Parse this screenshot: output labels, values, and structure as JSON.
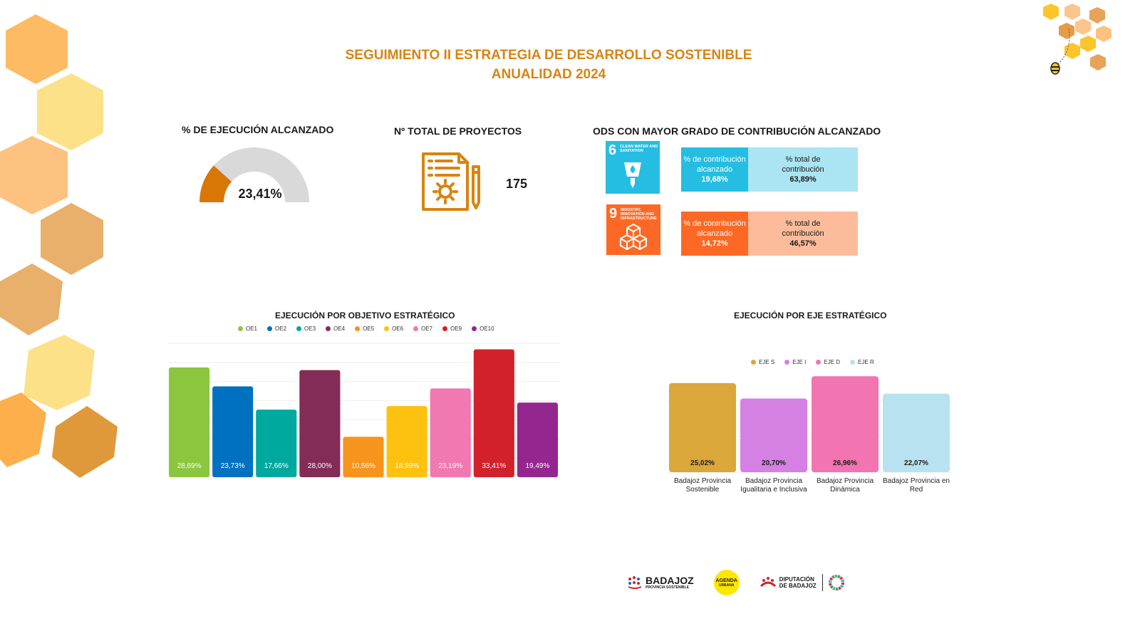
{
  "header": {
    "title_line1": "SEGUIMIENTO  II ESTRATEGIA DE DESARROLLO SOSTENIBLE",
    "title_line2": "ANUALIDAD 2024"
  },
  "execution": {
    "title": "% DE EJECUCIÓN ALCANZADO",
    "value_label": "23,41%",
    "value": 23.41,
    "fill_color": "#d97706",
    "track_color": "#d9d9d9"
  },
  "projects": {
    "title": "Nº TOTAL DE PROYECTOS",
    "total": "175",
    "icon": "document-gear-pencil-icon"
  },
  "ods": {
    "title": "ODS CON MAYOR GRADO DE CONTRIBUCIÓN ALCANZADO",
    "items": [
      {
        "number": "6",
        "name": "CLEAN WATER AND SANITATION",
        "tile_color": "#26bde2",
        "left_color": "#26bde2",
        "right_color": "#abe4f2",
        "left_label": "% de contribución alcanzado",
        "left_value": "19,68%",
        "right_label": "% total de contribución",
        "right_value": "63,89%"
      },
      {
        "number": "9",
        "name": "INDUSTRY, INNOVATION AND INFRASTRUCTURE",
        "tile_color": "#fd6925",
        "left_color": "#fd6925",
        "right_color": "#fcbc9c",
        "left_label": "% de contribución alcanzado",
        "left_value": "14,72%",
        "right_label": "% total de contribución",
        "right_value": "46,57%"
      }
    ]
  },
  "chart_data": [
    {
      "type": "bar",
      "title": "EJECUCIÓN POR OBJETIVO ESTRATÉGICO",
      "legend_position": "top",
      "grid": true,
      "categories": [
        "OE1",
        "OE2",
        "OE3",
        "OE4",
        "OE5",
        "OE6",
        "OE7",
        "OE9",
        "OE10"
      ],
      "values": [
        28.69,
        23.73,
        17.66,
        28.0,
        10.56,
        18.59,
        23.19,
        33.41,
        19.49
      ],
      "data_labels": [
        "28,69%",
        "23,73%",
        "17,66%",
        "28,00%",
        "10,56%",
        "18,59%",
        "23,19%",
        "33,41%",
        "19,49%"
      ],
      "colors": [
        "#8cc63f",
        "#0070c0",
        "#00a99d",
        "#832c57",
        "#f7941d",
        "#fdc110",
        "#f178b0",
        "#d2212b",
        "#93278f"
      ],
      "ylim": [
        0,
        35
      ]
    },
    {
      "type": "bar",
      "title": "EJECUCIÓN POR EJE ESTRATÉGICO",
      "legend_position": "top",
      "grid": true,
      "legend": [
        "EJE S",
        "EJE I",
        "EJE D",
        "EJE R"
      ],
      "categories": [
        "Badajoz Provincia Sostenible",
        "Badajoz Provincia Igualitaria e Inclusiva",
        "Badajoz Provincia Dinámica",
        "Badajoz Provincia en Red"
      ],
      "values": [
        25.02,
        20.7,
        26.96,
        22.07
      ],
      "data_labels": [
        "25,02%",
        "20,70%",
        "26,96%",
        "22,07%"
      ],
      "colors": [
        "#dba73a",
        "#d580e3",
        "#f274b0",
        "#b9e2f0"
      ],
      "ylim": [
        0,
        30
      ]
    }
  ],
  "footer": {
    "logo1_main": "BADAJOZ",
    "logo1_sub": "PROVINCIA SOSTENIBLE",
    "logo2_line1": "AGENDA",
    "logo2_line2": "URBANA",
    "logo3_line1": "DIPUTACIÓN",
    "logo3_line2": "DE BADAJOZ"
  }
}
